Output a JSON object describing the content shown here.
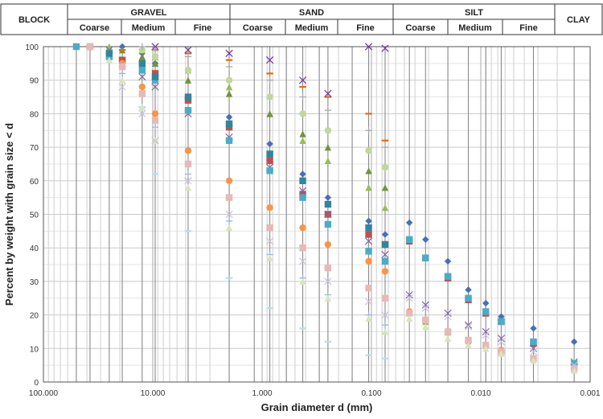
{
  "chart_data": {
    "type": "scatter",
    "title": "",
    "xlabel": "Grain diameter d (mm)",
    "ylabel": "Percent by weight with grain size < d",
    "x_scale": "log",
    "x_reversed": true,
    "xlim": [
      100,
      0.001
    ],
    "ylim": [
      0,
      100
    ],
    "x_ticks": [
      100,
      10,
      1,
      0.1,
      0.01,
      0.001
    ],
    "x_tick_labels": [
      "100.000",
      "10.000",
      "1.000",
      "0.100",
      "0.010",
      "0.001"
    ],
    "y_ticks": [
      0,
      10,
      20,
      30,
      40,
      50,
      60,
      70,
      80,
      90,
      100
    ],
    "y_tick_labels": [
      "0",
      "10",
      "20",
      "30",
      "40",
      "50",
      "60",
      "70",
      "80",
      "90",
      "100"
    ],
    "grid": "on",
    "legend": "none",
    "classification_header": {
      "groups": [
        {
          "label": "BLOCK",
          "subclasses": []
        },
        {
          "label": "GRAVEL",
          "subclasses": [
            "Coarse",
            "Medium",
            "Fine"
          ]
        },
        {
          "label": "SAND",
          "subclasses": [
            "Coarse",
            "Medium",
            "Fine"
          ]
        },
        {
          "label": "SILT",
          "subclasses": [
            "Coarse",
            "Medium",
            "Fine"
          ]
        },
        {
          "label": "CLAY",
          "subclasses": []
        }
      ]
    },
    "sieve_sizes": [
      50,
      37.5,
      25,
      19,
      12.5,
      9.5,
      4.75,
      2,
      1.18,
      0.85,
      0.6,
      0.425,
      0.3,
      0.25,
      0.15,
      0.106,
      0.075,
      0.045,
      0.032,
      0.02,
      0.013,
      0.009,
      0.0065,
      0.0033,
      0.0014
    ],
    "series": [
      {
        "color": "#4a6fb5",
        "marker": "diamond",
        "values": [
          [
            19,
            100
          ],
          [
            12.5,
            98
          ],
          [
            9.5,
            95
          ],
          [
            4.75,
            85
          ],
          [
            2,
            79
          ],
          [
            0.85,
            71
          ],
          [
            0.425,
            62
          ],
          [
            0.25,
            55
          ],
          [
            0.106,
            48
          ],
          [
            0.075,
            44
          ],
          [
            0.045,
            47.5
          ],
          [
            0.032,
            42.5
          ],
          [
            0.02,
            36
          ],
          [
            0.013,
            27.5
          ],
          [
            0.009,
            23.5
          ],
          [
            0.0065,
            19.5
          ],
          [
            0.0033,
            16
          ],
          [
            0.0014,
            12
          ]
        ]
      },
      {
        "color": "#c0504d",
        "marker": "square",
        "values": [
          [
            37.5,
            100
          ],
          [
            19,
            96
          ],
          [
            9.5,
            92
          ],
          [
            4.75,
            84
          ],
          [
            2,
            76
          ],
          [
            0.85,
            66
          ],
          [
            0.425,
            56
          ],
          [
            0.25,
            50
          ],
          [
            0.106,
            44
          ],
          [
            0.075,
            41
          ],
          [
            0.045,
            42
          ],
          [
            0.032,
            37
          ],
          [
            0.02,
            31
          ],
          [
            0.013,
            24.5
          ],
          [
            0.009,
            20.5
          ],
          [
            0.0065,
            18
          ],
          [
            0.0033,
            11.5
          ],
          [
            0.0014,
            5
          ]
        ]
      },
      {
        "color": "#9bbb59",
        "marker": "triangle",
        "values": [
          [
            25,
            100
          ],
          [
            12.5,
            99
          ],
          [
            9.5,
            97
          ],
          [
            4.75,
            93
          ],
          [
            2,
            88
          ],
          [
            0.85,
            80
          ],
          [
            0.425,
            72
          ],
          [
            0.25,
            66
          ],
          [
            0.106,
            58
          ],
          [
            0.075,
            52
          ],
          [
            0.045,
            21
          ],
          [
            0.032,
            18
          ],
          [
            0.02,
            15
          ],
          [
            0.013,
            12.5
          ],
          [
            0.009,
            11
          ],
          [
            0.0065,
            9.5
          ],
          [
            0.0033,
            7
          ],
          [
            0.0014,
            4
          ]
        ]
      },
      {
        "color": "#8064a2",
        "marker": "x",
        "values": [
          [
            25,
            99
          ],
          [
            19,
            95
          ],
          [
            12.5,
            91
          ],
          [
            9.5,
            88
          ],
          [
            4.75,
            80
          ],
          [
            2,
            73
          ],
          [
            0.85,
            64
          ],
          [
            0.425,
            57
          ],
          [
            0.25,
            50
          ],
          [
            0.106,
            42
          ],
          [
            0.075,
            38
          ],
          [
            0.045,
            26
          ],
          [
            0.032,
            23
          ],
          [
            0.02,
            20.5
          ],
          [
            0.013,
            17
          ],
          [
            0.009,
            15
          ],
          [
            0.0065,
            13
          ],
          [
            0.0033,
            10
          ],
          [
            0.0014,
            6
          ]
        ]
      },
      {
        "color": "#4bacc6",
        "marker": "square",
        "values": [
          [
            50,
            100
          ],
          [
            25,
            97
          ],
          [
            12.5,
            93
          ],
          [
            9.5,
            90
          ],
          [
            4.75,
            81
          ],
          [
            2,
            72
          ],
          [
            0.85,
            63
          ],
          [
            0.425,
            55
          ],
          [
            0.25,
            47
          ],
          [
            0.106,
            39
          ],
          [
            0.075,
            36
          ],
          [
            0.045,
            42.5
          ],
          [
            0.032,
            37
          ],
          [
            0.02,
            31.5
          ],
          [
            0.013,
            25
          ],
          [
            0.009,
            21
          ],
          [
            0.0065,
            18
          ],
          [
            0.0033,
            12
          ],
          [
            0.0014,
            5.5
          ]
        ]
      },
      {
        "color": "#f79646",
        "marker": "circle",
        "values": [
          [
            19,
            95
          ],
          [
            12.5,
            88
          ],
          [
            9.5,
            80
          ],
          [
            4.75,
            69
          ],
          [
            2,
            60
          ],
          [
            0.85,
            52
          ],
          [
            0.425,
            46
          ],
          [
            0.25,
            41
          ],
          [
            0.106,
            36
          ],
          [
            0.075,
            33
          ],
          [
            0.045,
            21
          ],
          [
            0.032,
            18.5
          ],
          [
            0.02,
            15
          ],
          [
            0.013,
            12
          ],
          [
            0.009,
            11
          ],
          [
            0.0065,
            9.5
          ],
          [
            0.0033,
            7
          ],
          [
            0.0014,
            4
          ]
        ]
      },
      {
        "color": "#95b3d7",
        "marker": "plus",
        "values": [
          [
            25,
            98
          ],
          [
            19,
            92
          ],
          [
            12.5,
            82
          ],
          [
            9.5,
            76
          ],
          [
            4.75,
            62
          ],
          [
            2,
            48
          ],
          [
            0.85,
            38
          ],
          [
            0.425,
            31
          ],
          [
            0.25,
            26
          ],
          [
            0.106,
            20
          ],
          [
            0.075,
            17
          ],
          [
            0.045,
            20
          ],
          [
            0.032,
            18
          ],
          [
            0.02,
            14
          ],
          [
            0.013,
            12
          ],
          [
            0.009,
            10.5
          ],
          [
            0.0065,
            9
          ],
          [
            0.0033,
            6.5
          ],
          [
            0.0014,
            4
          ]
        ]
      },
      {
        "color": "#e6b9b8",
        "marker": "square",
        "values": [
          [
            37.5,
            100
          ],
          [
            19,
            94
          ],
          [
            12.5,
            86
          ],
          [
            9.5,
            78
          ],
          [
            4.75,
            65
          ],
          [
            2,
            55
          ],
          [
            0.85,
            46
          ],
          [
            0.425,
            40
          ],
          [
            0.25,
            34
          ],
          [
            0.106,
            28
          ],
          [
            0.075,
            25
          ],
          [
            0.045,
            20.5
          ],
          [
            0.032,
            18.5
          ],
          [
            0.02,
            15
          ],
          [
            0.013,
            12.5
          ],
          [
            0.009,
            11
          ],
          [
            0.0065,
            9
          ],
          [
            0.0033,
            7
          ],
          [
            0.0014,
            4
          ]
        ]
      },
      {
        "color": "#d7e4bd",
        "marker": "triangle",
        "values": [
          [
            25,
            96
          ],
          [
            19,
            90
          ],
          [
            12.5,
            82
          ],
          [
            9.5,
            72
          ],
          [
            4.75,
            58
          ],
          [
            2,
            46
          ],
          [
            0.85,
            37
          ],
          [
            0.425,
            30
          ],
          [
            0.25,
            25
          ],
          [
            0.106,
            19
          ],
          [
            0.075,
            15
          ],
          [
            0.045,
            19
          ],
          [
            0.032,
            16.5
          ],
          [
            0.02,
            13
          ],
          [
            0.013,
            11
          ],
          [
            0.009,
            10
          ],
          [
            0.0065,
            8.5
          ],
          [
            0.0033,
            6.5
          ],
          [
            0.0014,
            3.5
          ]
        ]
      },
      {
        "color": "#ccc1da",
        "marker": "x",
        "values": [
          [
            19,
            88
          ],
          [
            12.5,
            80
          ],
          [
            9.5,
            72
          ],
          [
            4.75,
            60
          ],
          [
            2,
            50
          ],
          [
            0.85,
            42
          ],
          [
            0.425,
            36
          ],
          [
            0.25,
            30
          ],
          [
            0.106,
            24
          ],
          [
            0.075,
            20
          ],
          [
            0.045,
            25
          ],
          [
            0.032,
            22
          ],
          [
            0.02,
            19.5
          ],
          [
            0.013,
            16.5
          ],
          [
            0.009,
            14
          ],
          [
            0.0065,
            12
          ],
          [
            0.0033,
            9
          ],
          [
            0.0014,
            5
          ]
        ]
      },
      {
        "color": "#76923c",
        "marker": "triangle",
        "values": [
          [
            19,
            99
          ],
          [
            12.5,
            97
          ],
          [
            9.5,
            95
          ],
          [
            4.75,
            90
          ],
          [
            2,
            86
          ],
          [
            0.85,
            80
          ],
          [
            0.425,
            74
          ],
          [
            0.25,
            70
          ],
          [
            0.106,
            63
          ],
          [
            0.075,
            58
          ]
        ]
      },
      {
        "color": "#31859c",
        "marker": "square",
        "values": [
          [
            25,
            98
          ],
          [
            12.5,
            95
          ],
          [
            9.5,
            91
          ],
          [
            4.75,
            85
          ],
          [
            2,
            77
          ],
          [
            0.85,
            68
          ],
          [
            0.425,
            60
          ],
          [
            0.25,
            53
          ],
          [
            0.106,
            46
          ],
          [
            0.075,
            41
          ]
        ]
      },
      {
        "color": "#e46c0a",
        "marker": "dash",
        "values": [
          [
            19,
            99
          ],
          [
            9.5,
            99
          ],
          [
            4.75,
            98
          ],
          [
            2,
            96
          ],
          [
            0.85,
            92
          ],
          [
            0.425,
            88
          ],
          [
            0.25,
            85
          ],
          [
            0.106,
            80
          ],
          [
            0.075,
            72
          ]
        ]
      },
      {
        "color": "#7030a0",
        "marker": "x",
        "values": [
          [
            9.5,
            100
          ],
          [
            4.75,
            99
          ],
          [
            2,
            98
          ],
          [
            0.85,
            96
          ],
          [
            0.425,
            90
          ],
          [
            0.25,
            86
          ],
          [
            0.106,
            100
          ],
          [
            0.075,
            99.5
          ]
        ]
      },
      {
        "color": "#c3d69b",
        "marker": "circle",
        "values": [
          [
            12.5,
            99
          ],
          [
            9.5,
            97
          ],
          [
            4.75,
            93
          ],
          [
            2,
            90
          ],
          [
            0.85,
            85
          ],
          [
            0.425,
            80
          ],
          [
            0.25,
            75
          ],
          [
            0.106,
            69
          ],
          [
            0.075,
            64
          ]
        ]
      },
      {
        "color": "#b7dee8",
        "marker": "dash",
        "values": [
          [
            9.5,
            62
          ],
          [
            4.75,
            45
          ],
          [
            2,
            31
          ],
          [
            0.85,
            22
          ],
          [
            0.425,
            16
          ],
          [
            0.25,
            12
          ],
          [
            0.106,
            8
          ],
          [
            0.075,
            7
          ]
        ]
      },
      {
        "color": "#a6a6a6",
        "marker": "plus",
        "values": [
          [
            12.5,
            100
          ],
          [
            9.5,
            99
          ],
          [
            4.75,
            97
          ],
          [
            2,
            94
          ],
          [
            0.85,
            90
          ],
          [
            0.425,
            85
          ],
          [
            0.25,
            81
          ],
          [
            0.106,
            75
          ],
          [
            0.075,
            70
          ]
        ]
      }
    ]
  }
}
